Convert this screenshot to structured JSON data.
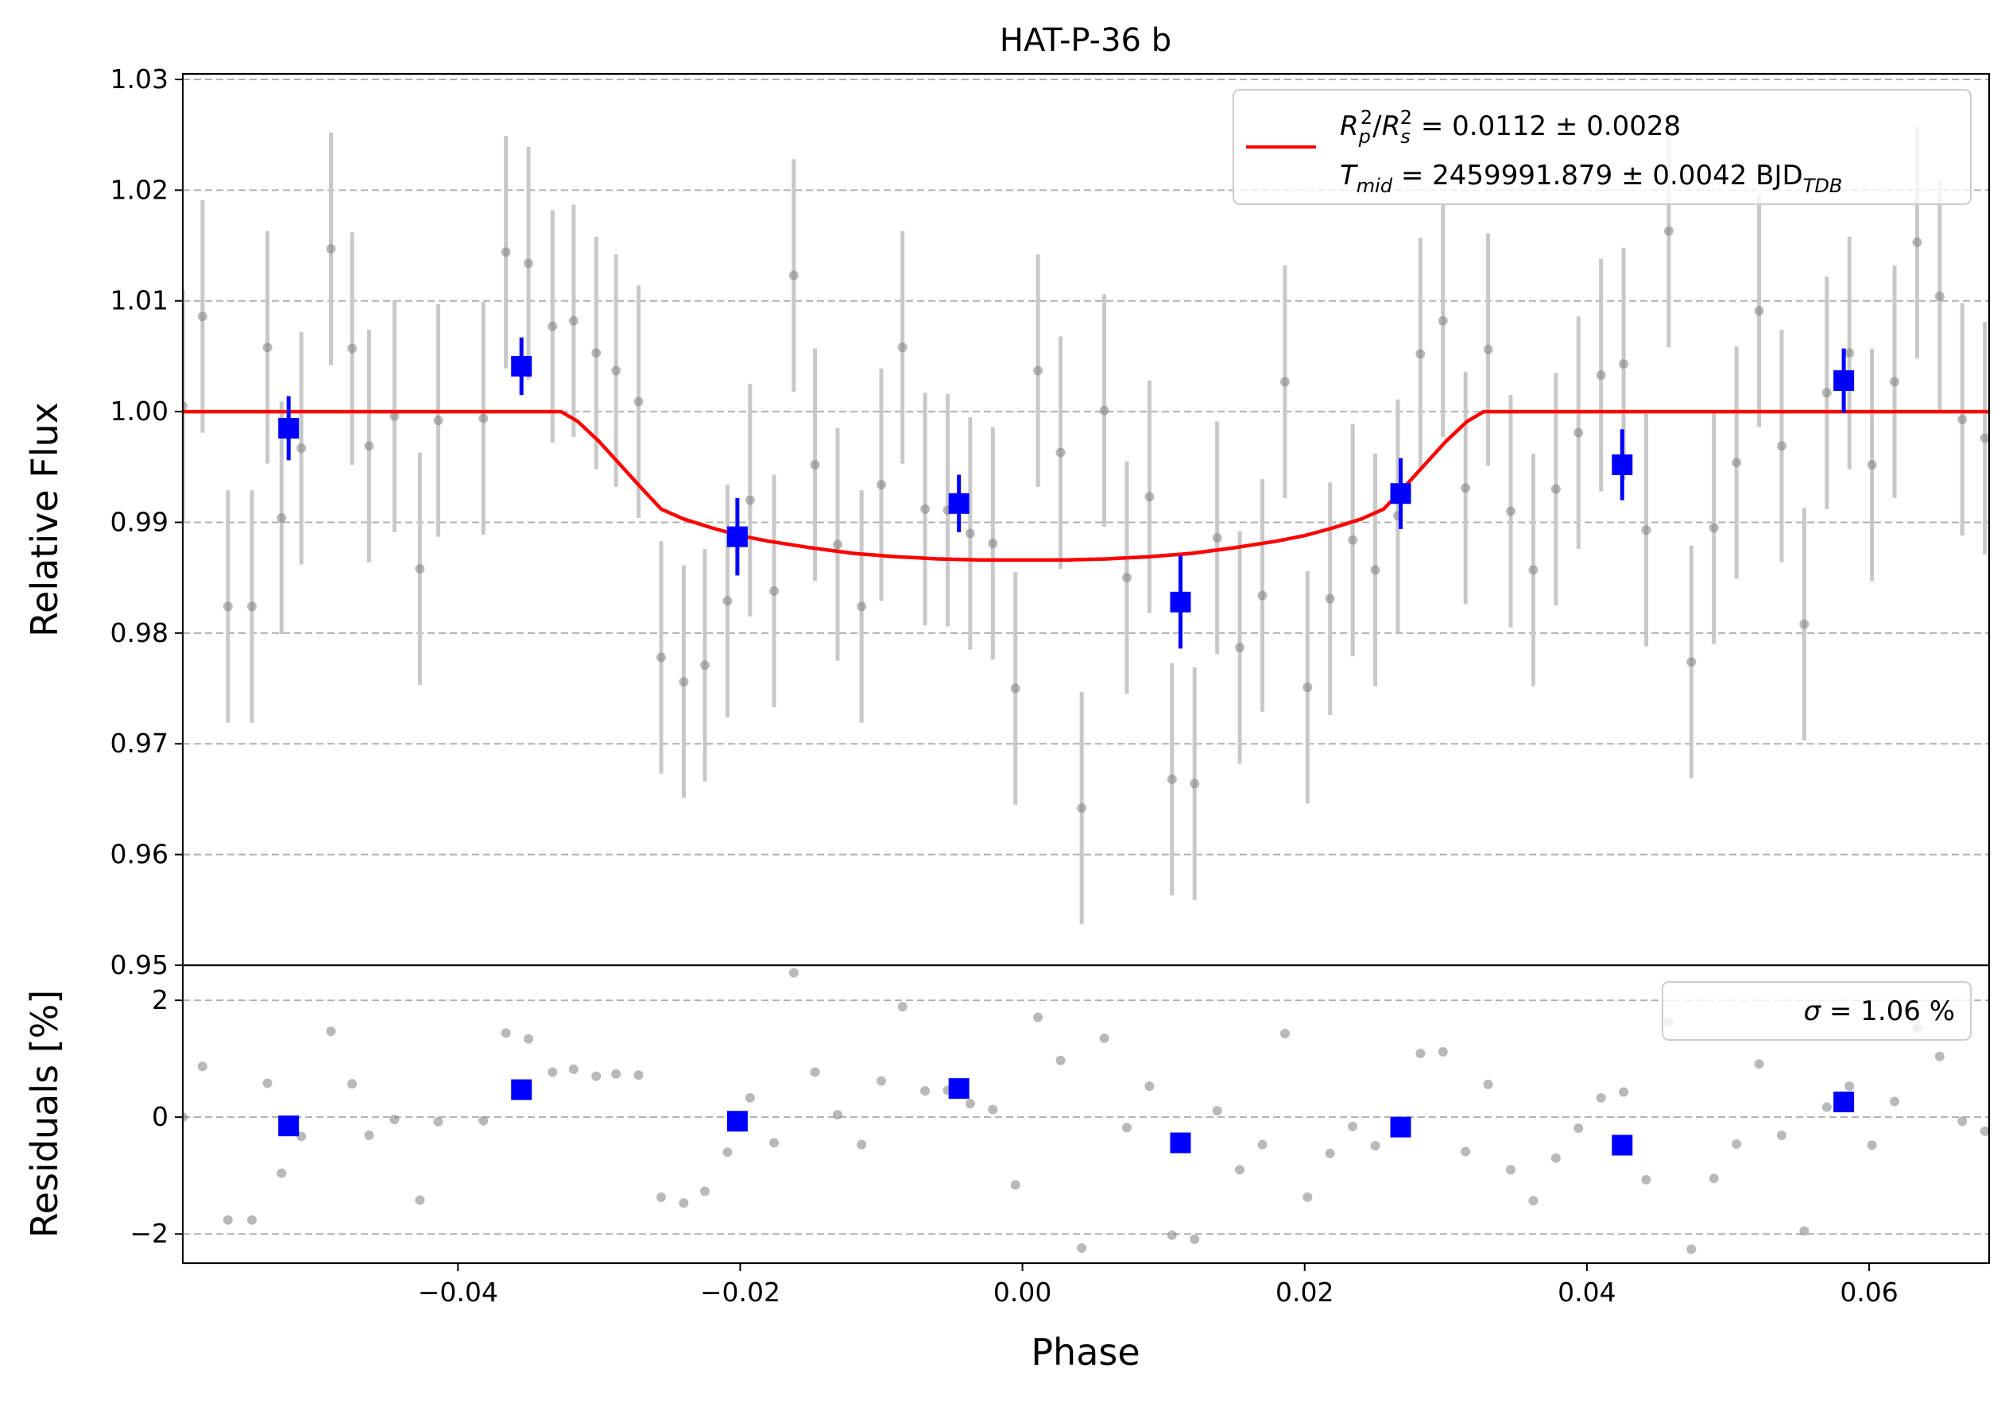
{
  "chart_data": [
    {
      "type": "scatter",
      "panel": "main",
      "title": "HAT-P-36 b",
      "xlabel": "",
      "ylabel": "Relative Flux",
      "xlim": [
        -0.0595,
        0.0685
      ],
      "ylim": [
        0.95,
        1.0305
      ],
      "grid": "y-dashed",
      "legend_position": "top-right",
      "y_ticks": [
        0.95,
        0.96,
        0.97,
        0.98,
        0.99,
        1.0,
        1.01,
        1.02,
        1.03
      ],
      "y_tick_labels": [
        "0.95",
        "0.96",
        "0.97",
        "0.98",
        "0.99",
        "1.00",
        "1.01",
        "1.02",
        "1.03"
      ],
      "legend": {
        "ratio_lhs": [
          "R",
          "p",
          "2",
          "/",
          "R",
          "s",
          "2"
        ],
        "ratio_value": " = 0.0112 ± 0.0028",
        "tmid_lhs": [
          "T",
          "mid"
        ],
        "tmid_value": " = 2459991.879 ± 0.0042 BJD",
        "tmid_unit_sub": "TDB"
      },
      "colors": {
        "model": "#ff0000",
        "binned": "#0000ff",
        "raw": "#808080",
        "raw_err": "#c8c8c8",
        "grid": "#b0b0b0"
      },
      "series": [
        {
          "role": "raw",
          "x": [
            -0.0595,
            -0.0581,
            -0.0563,
            -0.0546,
            -0.0535,
            -0.0525,
            -0.0511,
            -0.049,
            -0.0475,
            -0.0463,
            -0.0445,
            -0.0427,
            -0.0414,
            -0.0382,
            -0.0366,
            -0.035,
            -0.0333,
            -0.0318,
            -0.0302,
            -0.0288,
            -0.0272,
            -0.0256,
            -0.024,
            -0.0225,
            -0.0209,
            -0.0193,
            -0.0176,
            -0.0162,
            -0.0147,
            -0.0131,
            -0.0114,
            -0.01,
            -0.0085,
            -0.0069,
            -0.0053,
            -0.0037,
            -0.0021,
            -0.0005,
            0.0011,
            0.0027,
            0.0042,
            0.0058,
            0.0074,
            0.009,
            0.0106,
            0.0122,
            0.0138,
            0.0154,
            0.017,
            0.0186,
            0.0202,
            0.0218,
            0.0234,
            0.025,
            0.0266,
            0.0282,
            0.0298,
            0.0314,
            0.033,
            0.0346,
            0.0362,
            0.0378,
            0.0394,
            0.041,
            0.0426,
            0.0442,
            0.0458,
            0.0474,
            0.049,
            0.0506,
            0.0522,
            0.0538,
            0.0554,
            0.057,
            0.0586,
            0.0602,
            0.0618,
            0.0634,
            0.065,
            0.0666,
            0.0682
          ],
          "y": [
            1.0005,
            1.0086,
            0.9824,
            0.9824,
            1.0058,
            0.9904,
            0.9967,
            1.0147,
            1.0057,
            0.9969,
            0.9996,
            0.9858,
            0.9992,
            0.9994,
            1.0144,
            1.0134,
            1.0077,
            1.0082,
            1.0053,
            1.0037,
            1.0009,
            0.9778,
            0.9756,
            0.9771,
            0.9829,
            0.992,
            0.9838,
            1.0123,
            0.9952,
            0.988,
            0.9824,
            0.9934,
            1.0058,
            0.9912,
            0.9911,
            0.989,
            0.9881,
            0.975,
            1.0037,
            0.9963,
            0.9642,
            1.0001,
            0.985,
            0.9923,
            0.9668,
            0.9664,
            0.9886,
            0.9787,
            0.9834,
            1.0027,
            0.9751,
            0.9831,
            0.9884,
            0.9857,
            0.9906,
            1.0052,
            1.0082,
            0.9931,
            1.0056,
            0.991,
            0.9857,
            0.993,
            0.9981,
            1.0033,
            1.0043,
            0.9893,
            1.0163,
            0.9774,
            0.9895,
            0.9954,
            1.0091,
            0.9969,
            0.9808,
            1.0017,
            1.0053,
            0.9952,
            1.0027,
            1.0153,
            1.0104,
            0.9993,
            0.9976
          ],
          "yerr": 0.0105
        },
        {
          "role": "binned",
          "x": [
            -0.052,
            -0.0355,
            -0.0202,
            -0.0045,
            0.0112,
            0.0268,
            0.0425,
            0.0582
          ],
          "y": [
            0.9985,
            1.0041,
            0.9887,
            0.9917,
            0.9828,
            0.9926,
            0.9952,
            1.0028
          ],
          "yerr": [
            0.0029,
            0.0026,
            0.0035,
            0.0026,
            0.0042,
            0.0032,
            0.0032,
            0.0029
          ]
        },
        {
          "role": "model",
          "x": [
            -0.0595,
            -0.0327,
            -0.0315,
            -0.03,
            -0.0285,
            -0.027,
            -0.0256,
            -0.024,
            -0.022,
            -0.02,
            -0.018,
            -0.015,
            -0.012,
            -0.009,
            -0.006,
            -0.003,
            0.0,
            0.003,
            0.006,
            0.009,
            0.012,
            0.015,
            0.018,
            0.02,
            0.022,
            0.024,
            0.0256,
            0.027,
            0.0285,
            0.03,
            0.0315,
            0.0327,
            0.0685
          ],
          "y": [
            1.0,
            1.0,
            0.9991,
            0.9973,
            0.9952,
            0.9931,
            0.9912,
            0.9903,
            0.9895,
            0.9888,
            0.9883,
            0.9877,
            0.9872,
            0.9869,
            0.9867,
            0.9866,
            0.9866,
            0.9866,
            0.9867,
            0.9869,
            0.9872,
            0.9877,
            0.9883,
            0.9888,
            0.9895,
            0.9903,
            0.9912,
            0.9931,
            0.9952,
            0.9973,
            0.9991,
            1.0,
            1.0
          ]
        }
      ]
    },
    {
      "type": "scatter",
      "panel": "residuals",
      "xlabel": "Phase",
      "ylabel": "Residuals [%]",
      "xlim": [
        -0.0595,
        0.0685
      ],
      "ylim": [
        -2.5,
        2.6
      ],
      "grid": "y-dashed",
      "legend_position": "top-right",
      "x_ticks": [
        -0.04,
        -0.02,
        0.0,
        0.02,
        0.04,
        0.06
      ],
      "x_tick_labels": [
        "−0.04",
        "−0.02",
        "0.00",
        "0.02",
        "0.04",
        "0.06"
      ],
      "y_ticks": [
        -2,
        0,
        2
      ],
      "y_tick_labels": [
        "−2",
        "0",
        "2"
      ],
      "legend": {
        "sigma_symbol": "σ",
        "sigma_value": " = 1.06 %"
      },
      "series": [
        {
          "role": "raw",
          "x": [
            -0.0595,
            -0.0581,
            -0.0563,
            -0.0546,
            -0.0535,
            -0.0525,
            -0.0511,
            -0.049,
            -0.0475,
            -0.0463,
            -0.0445,
            -0.0427,
            -0.0414,
            -0.0382,
            -0.0366,
            -0.035,
            -0.0333,
            -0.0318,
            -0.0302,
            -0.0288,
            -0.0272,
            -0.0256,
            -0.024,
            -0.0225,
            -0.0209,
            -0.0193,
            -0.0176,
            -0.0162,
            -0.0147,
            -0.0131,
            -0.0114,
            -0.01,
            -0.0085,
            -0.0069,
            -0.0053,
            -0.0037,
            -0.0021,
            -0.0005,
            0.0011,
            0.0027,
            0.0042,
            0.0058,
            0.0074,
            0.009,
            0.0106,
            0.0122,
            0.0138,
            0.0154,
            0.017,
            0.0186,
            0.0202,
            0.0218,
            0.0234,
            0.025,
            0.0266,
            0.0282,
            0.0298,
            0.0314,
            0.033,
            0.0346,
            0.0362,
            0.0378,
            0.0394,
            0.041,
            0.0426,
            0.0442,
            0.0458,
            0.0474,
            0.049,
            0.0506,
            0.0522,
            0.0538,
            0.0554,
            0.057,
            0.0586,
            0.0602,
            0.0618,
            0.0634,
            0.065,
            0.0666,
            0.0682
          ],
          "y": [
            0.0,
            0.87,
            -1.76,
            -1.76,
            0.58,
            -0.96,
            -0.33,
            1.47,
            0.57,
            -0.31,
            -0.04,
            -1.42,
            -0.08,
            -0.06,
            1.44,
            1.34,
            0.77,
            0.82,
            0.7,
            0.74,
            0.72,
            -1.37,
            -1.47,
            -1.27,
            -0.6,
            0.33,
            -0.44,
            2.47,
            0.77,
            0.04,
            -0.47,
            0.62,
            1.89,
            0.45,
            0.46,
            0.23,
            0.13,
            -1.16,
            1.71,
            0.97,
            -2.24,
            1.35,
            -0.18,
            0.53,
            -2.02,
            -2.09,
            0.11,
            -0.9,
            -0.47,
            1.43,
            -1.37,
            -0.62,
            -0.16,
            -0.49,
            -0.2,
            1.09,
            1.12,
            -0.59,
            0.56,
            -0.9,
            -1.43,
            -0.7,
            -0.19,
            0.33,
            0.43,
            -1.07,
            1.63,
            -2.26,
            -1.05,
            -0.46,
            0.91,
            -0.31,
            -1.95,
            0.17,
            0.53,
            -0.48,
            0.27,
            1.53,
            1.04,
            -0.07,
            -0.24
          ]
        },
        {
          "role": "binned",
          "x": [
            -0.052,
            -0.0355,
            -0.0202,
            -0.0045,
            0.0112,
            0.0268,
            0.0425,
            0.0582
          ],
          "y": [
            -0.15,
            0.47,
            -0.07,
            0.49,
            -0.44,
            -0.17,
            -0.48,
            0.26
          ]
        }
      ]
    }
  ]
}
